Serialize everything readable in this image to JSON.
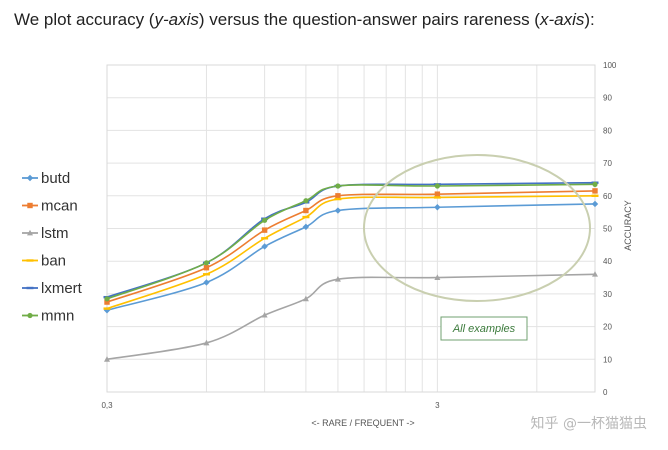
{
  "caption": {
    "p1": "We plot accuracy (",
    "p2": "y-axis",
    "p3": ") versus the question-answer pairs rareness (",
    "p4": "x-axis",
    "p5": "):"
  },
  "watermark": "知乎 @一杯猫猫虫",
  "chart_data": {
    "type": "line",
    "title": "",
    "xlabel": "<- RARE / FREQUENT ->",
    "ylabel": "ACCURACY",
    "x_scale": "log",
    "xlim": [
      0.3,
      9.0
    ],
    "ylim": [
      0,
      100
    ],
    "y_ticks": [
      0,
      10,
      20,
      30,
      40,
      50,
      60,
      70,
      80,
      90,
      100
    ],
    "x_tick_labels": [
      {
        "value": 0.3,
        "label": "0,3"
      },
      {
        "value": 3,
        "label": "3"
      }
    ],
    "x_gridlines": [
      0.3,
      0.6,
      0.9,
      1.2,
      1.5,
      1.8,
      2.1,
      2.4,
      2.7,
      3,
      6,
      9
    ],
    "grid": true,
    "legend_position": "left",
    "x": [
      0.3,
      0.6,
      0.9,
      1.2,
      1.5,
      3.0,
      9.0
    ],
    "series": [
      {
        "name": "butd",
        "color": "#5b9bd5",
        "marker": "diamond",
        "values": [
          25.0,
          33.5,
          44.5,
          50.5,
          55.5,
          56.5,
          57.5
        ]
      },
      {
        "name": "mcan",
        "color": "#ed7d31",
        "marker": "square",
        "values": [
          27.5,
          38.0,
          49.5,
          55.5,
          60.0,
          60.5,
          61.5
        ]
      },
      {
        "name": "lstm",
        "color": "#a5a5a5",
        "marker": "triangle",
        "values": [
          10.0,
          15.0,
          23.5,
          28.5,
          34.5,
          35.0,
          36.0
        ]
      },
      {
        "name": "ban",
        "color": "#ffc000",
        "marker": "dash",
        "values": [
          25.5,
          36.0,
          47.0,
          53.5,
          59.0,
          59.5,
          60.0
        ]
      },
      {
        "name": "lxmert",
        "color": "#4472c4",
        "marker": "dash",
        "values": [
          29.0,
          39.5,
          53.0,
          58.0,
          63.0,
          63.5,
          64.0
        ]
      },
      {
        "name": "mmn",
        "color": "#70ad47",
        "marker": "circle",
        "values": [
          28.5,
          39.5,
          52.5,
          58.5,
          63.0,
          63.0,
          63.5
        ]
      }
    ],
    "annotation": {
      "text": "All examples",
      "color": "#70a070"
    },
    "highlight_ellipse_color": "#c9cfb0"
  }
}
